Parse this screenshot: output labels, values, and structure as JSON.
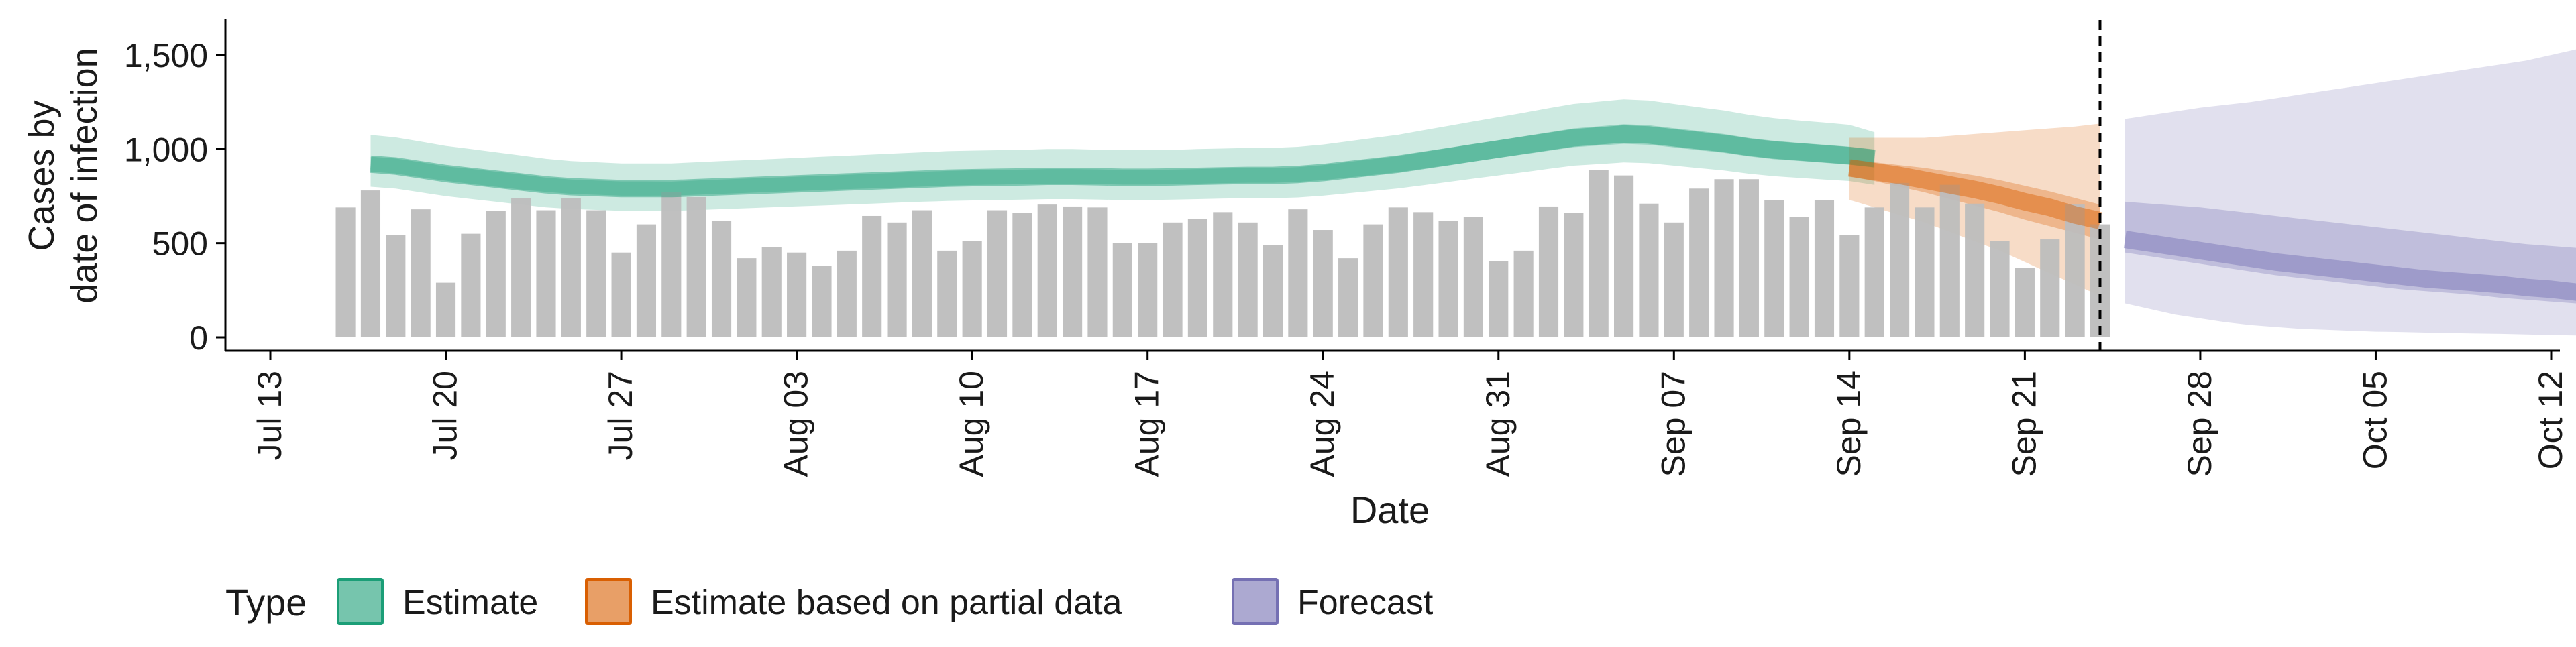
{
  "chart_data": {
    "type": "bar",
    "xlabel": "Date",
    "ylabel_line1": "Cases by",
    "ylabel_line2": "date of infection",
    "ylim": [
      0,
      1650
    ],
    "yticks": [
      0,
      500,
      1000,
      1500
    ],
    "ytick_labels": [
      "0",
      "500",
      "1,000",
      "1,500"
    ],
    "xlim": [
      "2020-07-12",
      "2020-10-12"
    ],
    "xticks": [
      "2020-07-13",
      "2020-07-20",
      "2020-07-27",
      "2020-08-03",
      "2020-08-10",
      "2020-08-17",
      "2020-08-24",
      "2020-08-31",
      "2020-09-07",
      "2020-09-14",
      "2020-09-21",
      "2020-09-28",
      "2020-10-05",
      "2020-10-12"
    ],
    "xtick_labels": [
      "Jul 13",
      "Jul 20",
      "Jul 27",
      "Aug 03",
      "Aug 10",
      "Aug 17",
      "Aug 24",
      "Aug 31",
      "Sep 07",
      "Sep 14",
      "Sep 21",
      "Sep 28",
      "Oct 05",
      "Oct 12"
    ],
    "vline_date": "2020-09-24",
    "colors": {
      "estimate": "#1b9e77",
      "partial": "#d95f02",
      "forecast": "#7570b3",
      "bars": "#bdbdbd"
    },
    "legend_title": "Type",
    "legend": [
      {
        "label": "Estimate",
        "key": "estimate"
      },
      {
        "label": "Estimate based on partial data",
        "key": "partial"
      },
      {
        "label": "Forecast",
        "key": "forecast"
      }
    ],
    "bars": {
      "start_date": "2020-07-16",
      "values": [
        690,
        780,
        545,
        680,
        290,
        550,
        670,
        740,
        675,
        740,
        675,
        450,
        600,
        770,
        745,
        620,
        420,
        480,
        450,
        380,
        460,
        645,
        610,
        675,
        460,
        510,
        675,
        660,
        705,
        695,
        690,
        500,
        500,
        610,
        630,
        665,
        610,
        490,
        680,
        570,
        420,
        600,
        690,
        665,
        620,
        640,
        405,
        460,
        695,
        660,
        890,
        860,
        710,
        610,
        790,
        840,
        840,
        730,
        640,
        730,
        545,
        690,
        820,
        690,
        810,
        710,
        510,
        370,
        520,
        705,
        600
      ]
    },
    "series": [
      {
        "key": "estimate",
        "start_date": "2020-07-17",
        "median": [
          920,
          910,
          890,
          870,
          855,
          840,
          825,
          810,
          800,
          795,
          790,
          790,
          790,
          795,
          800,
          805,
          810,
          815,
          820,
          825,
          830,
          835,
          840,
          845,
          848,
          850,
          852,
          855,
          855,
          853,
          850,
          850,
          852,
          855,
          858,
          860,
          860,
          865,
          875,
          890,
          905,
          920,
          940,
          960,
          980,
          1000,
          1020,
          1040,
          1060,
          1070,
          1080,
          1075,
          1060,
          1045,
          1030,
          1010,
          995,
          985,
          975,
          965,
          950
        ],
        "lower50": [
          880,
          870,
          850,
          832,
          815,
          800,
          785,
          772,
          762,
          757,
          752,
          752,
          753,
          757,
          762,
          767,
          772,
          777,
          782,
          787,
          791,
          796,
          801,
          806,
          809,
          811,
          813,
          816,
          816,
          814,
          811,
          811,
          813,
          816,
          819,
          821,
          821,
          826,
          835,
          849,
          863,
          877,
          896,
          915,
          934,
          953,
          972,
          991,
          1010,
          1019,
          1028,
          1023,
          1009,
          994,
          980,
          961,
          946,
          937,
          927,
          917,
          902
        ],
        "upper50": [
          960,
          950,
          930,
          908,
          895,
          880,
          865,
          848,
          838,
          833,
          828,
          828,
          827,
          833,
          838,
          843,
          848,
          853,
          858,
          863,
          869,
          874,
          879,
          884,
          887,
          889,
          891,
          894,
          894,
          892,
          889,
          889,
          891,
          894,
          897,
          899,
          899,
          904,
          915,
          931,
          947,
          963,
          984,
          1005,
          1026,
          1047,
          1068,
          1089,
          1110,
          1121,
          1132,
          1127,
          1111,
          1096,
          1080,
          1059,
          1044,
          1033,
          1023,
          1013,
          998
        ],
        "lower90": [
          800,
          790,
          770,
          750,
          735,
          720,
          705,
          690,
          682,
          677,
          672,
          672,
          672,
          676,
          681,
          686,
          691,
          696,
          700,
          705,
          710,
          715,
          720,
          724,
          727,
          729,
          731,
          734,
          734,
          732,
          729,
          729,
          731,
          734,
          737,
          739,
          739,
          743,
          752,
          765,
          778,
          791,
          808,
          825,
          843,
          860,
          877,
          895,
          912,
          920,
          929,
          925,
          912,
          899,
          886,
          869,
          856,
          847,
          838,
          830,
          810
        ],
        "upper90": [
          1075,
          1062,
          1040,
          1017,
          1000,
          983,
          966,
          948,
          936,
          930,
          924,
          924,
          924,
          930,
          936,
          941,
          947,
          953,
          959,
          965,
          971,
          977,
          983,
          989,
          992,
          994,
          996,
          1000,
          1000,
          997,
          994,
          994,
          996,
          1000,
          1003,
          1006,
          1006,
          1012,
          1024,
          1041,
          1059,
          1076,
          1100,
          1123,
          1147,
          1170,
          1193,
          1217,
          1240,
          1252,
          1264,
          1258,
          1240,
          1222,
          1205,
          1182,
          1164,
          1152,
          1141,
          1129,
          1090
        ]
      },
      {
        "key": "partial",
        "start_date": "2020-09-14",
        "median": [
          900,
          880,
          860,
          835,
          810,
          785,
          755,
          720,
          690,
          650,
          620
        ],
        "lower50": [
          855,
          830,
          800,
          770,
          735,
          700,
          665,
          625,
          590,
          555,
          520
        ],
        "upper50": [
          945,
          930,
          915,
          900,
          880,
          860,
          835,
          805,
          775,
          740,
          705
        ],
        "lower90": [
          730,
          690,
          650,
          610,
          560,
          510,
          460,
          400,
          340,
          280,
          220
        ],
        "upper90": [
          1060,
          1060,
          1060,
          1060,
          1070,
          1080,
          1090,
          1100,
          1110,
          1120,
          1135
        ]
      },
      {
        "key": "forecast",
        "start_date": "2020-09-25",
        "median": [
          520,
          500,
          480,
          460,
          440,
          420,
          400,
          385,
          370,
          355,
          340,
          325,
          310,
          300,
          290,
          280,
          265,
          255,
          240,
          230,
          210
        ],
        "lower50": [
          450,
          430,
          410,
          390,
          370,
          350,
          330,
          315,
          300,
          285,
          270,
          255,
          245,
          235,
          225,
          210,
          200,
          190,
          180,
          170,
          145
        ],
        "upper50": [
          720,
          710,
          700,
          690,
          675,
          660,
          645,
          630,
          615,
          600,
          585,
          570,
          555,
          540,
          525,
          510,
          495,
          485,
          475,
          470,
          460
        ],
        "lower90": [
          180,
          150,
          120,
          100,
          80,
          65,
          55,
          45,
          40,
          35,
          30,
          28,
          25,
          22,
          20,
          18,
          15,
          12,
          10,
          8,
          5
        ],
        "upper90": [
          1160,
          1180,
          1200,
          1220,
          1235,
          1250,
          1270,
          1290,
          1310,
          1330,
          1350,
          1370,
          1390,
          1410,
          1430,
          1450,
          1470,
          1500,
          1530,
          1560,
          1600
        ]
      }
    ]
  }
}
